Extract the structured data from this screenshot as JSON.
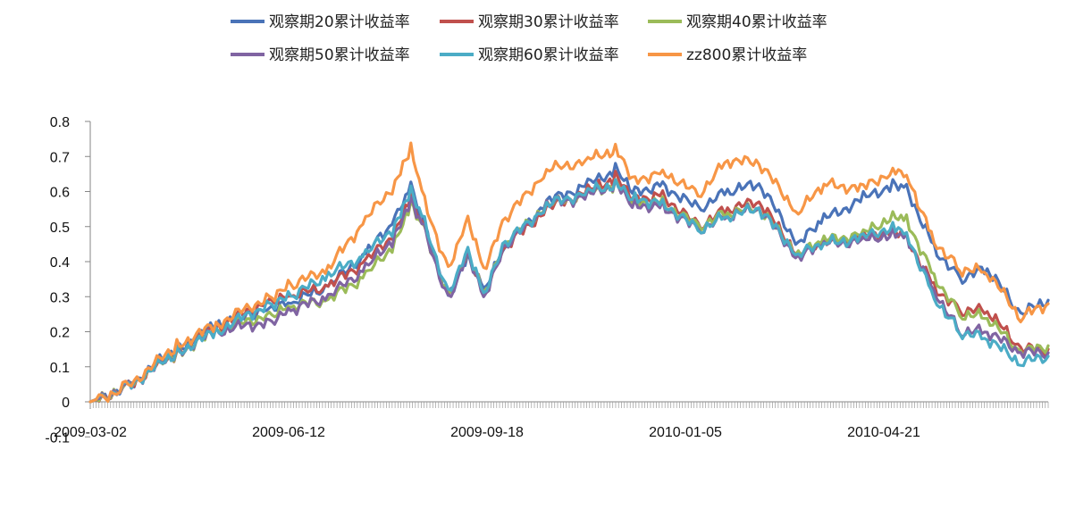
{
  "chart_data": {
    "type": "line",
    "title": "",
    "xlabel": "",
    "ylabel": "",
    "ylim": [
      -0.1,
      0.8
    ],
    "yticks": [
      "-0.1",
      "0",
      "0.1",
      "0.2",
      "0.3",
      "0.4",
      "0.5",
      "0.6",
      "0.7",
      "0.8"
    ],
    "xtick_labels": [
      "2009-03-02",
      "2009-06-12",
      "2009-09-18",
      "2010-01-05",
      "2010-04-21"
    ],
    "x_points": [
      "2009-03-02",
      "2009-03-20",
      "2009-04-15",
      "2009-05-05",
      "2009-06-01",
      "2009-06-12",
      "2009-07-01",
      "2009-07-20",
      "2009-08-04",
      "2009-08-12",
      "2009-08-19",
      "2009-08-31",
      "2009-09-10",
      "2009-09-18",
      "2009-09-29",
      "2009-10-20",
      "2009-11-10",
      "2009-11-24",
      "2009-12-04",
      "2009-12-18",
      "2010-01-05",
      "2010-01-20",
      "2010-02-05",
      "2010-02-25",
      "2010-03-10",
      "2010-03-30",
      "2010-04-14",
      "2010-04-21",
      "2010-05-05",
      "2010-05-18",
      "2010-06-01",
      "2010-06-18",
      "2010-07-02"
    ],
    "legend_position": "top",
    "series": [
      {
        "name": "观察期20累计收益率",
        "color": "#4a73b8",
        "values": [
          0.0,
          0.04,
          0.15,
          0.22,
          0.27,
          0.28,
          0.33,
          0.42,
          0.52,
          0.61,
          0.5,
          0.3,
          0.42,
          0.32,
          0.44,
          0.57,
          0.62,
          0.66,
          0.6,
          0.62,
          0.55,
          0.6,
          0.62,
          0.45,
          0.52,
          0.58,
          0.62,
          0.61,
          0.44,
          0.35,
          0.38,
          0.25,
          0.29
        ]
      },
      {
        "name": "观察期30累计收益率",
        "color": "#c0504d",
        "values": [
          0.0,
          0.04,
          0.14,
          0.21,
          0.29,
          0.3,
          0.33,
          0.4,
          0.48,
          0.58,
          0.49,
          0.3,
          0.43,
          0.31,
          0.44,
          0.55,
          0.6,
          0.64,
          0.58,
          0.59,
          0.5,
          0.55,
          0.57,
          0.42,
          0.45,
          0.47,
          0.49,
          0.47,
          0.33,
          0.26,
          0.26,
          0.15,
          0.15
        ]
      },
      {
        "name": "观察期40累计收益率",
        "color": "#9bbb59",
        "values": [
          0.0,
          0.04,
          0.14,
          0.2,
          0.25,
          0.27,
          0.29,
          0.36,
          0.45,
          0.56,
          0.49,
          0.3,
          0.43,
          0.31,
          0.45,
          0.56,
          0.59,
          0.62,
          0.57,
          0.57,
          0.5,
          0.54,
          0.55,
          0.42,
          0.46,
          0.48,
          0.53,
          0.52,
          0.36,
          0.25,
          0.24,
          0.14,
          0.16
        ]
      },
      {
        "name": "观察期50累计收益率",
        "color": "#8064a2",
        "values": [
          0.0,
          0.04,
          0.14,
          0.2,
          0.23,
          0.26,
          0.3,
          0.38,
          0.47,
          0.57,
          0.49,
          0.29,
          0.43,
          0.3,
          0.44,
          0.56,
          0.59,
          0.62,
          0.56,
          0.56,
          0.49,
          0.53,
          0.55,
          0.41,
          0.45,
          0.46,
          0.48,
          0.47,
          0.32,
          0.2,
          0.2,
          0.14,
          0.14
        ]
      },
      {
        "name": "观察期60累计收益率",
        "color": "#4bacc6",
        "values": [
          0.0,
          0.04,
          0.14,
          0.2,
          0.28,
          0.3,
          0.36,
          0.42,
          0.5,
          0.6,
          0.51,
          0.31,
          0.44,
          0.31,
          0.45,
          0.56,
          0.6,
          0.62,
          0.58,
          0.57,
          0.49,
          0.53,
          0.55,
          0.42,
          0.45,
          0.47,
          0.5,
          0.48,
          0.3,
          0.2,
          0.18,
          0.11,
          0.13
        ]
      },
      {
        "name": "zz800累计收益率",
        "color": "#f79646",
        "values": [
          0.0,
          0.04,
          0.16,
          0.22,
          0.3,
          0.33,
          0.38,
          0.52,
          0.62,
          0.72,
          0.57,
          0.38,
          0.53,
          0.38,
          0.52,
          0.66,
          0.69,
          0.72,
          0.63,
          0.66,
          0.59,
          0.69,
          0.68,
          0.54,
          0.62,
          0.61,
          0.66,
          0.65,
          0.46,
          0.38,
          0.37,
          0.24,
          0.28
        ]
      }
    ]
  }
}
